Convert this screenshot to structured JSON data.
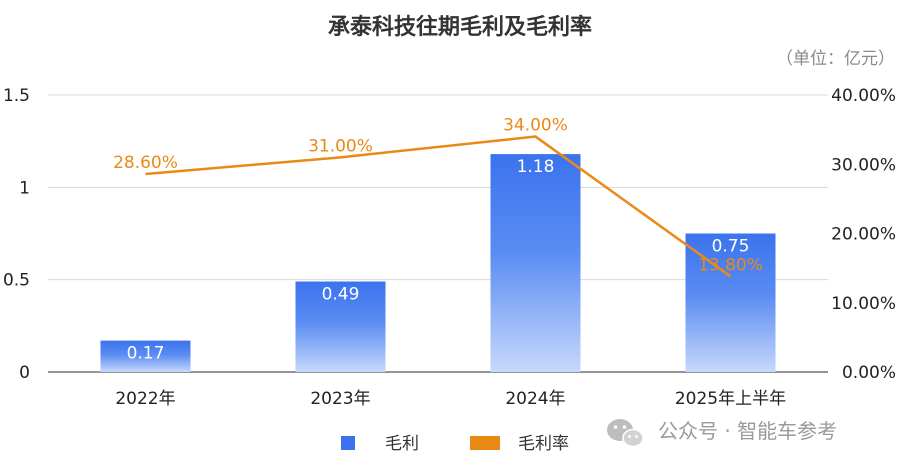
{
  "chart_data": {
    "type": "bar",
    "title": "承泰科技往期毛利及毛利率",
    "unit_note": "（单位：亿元）",
    "categories": [
      "2022年",
      "2023年",
      "2024年",
      "2025年上半年"
    ],
    "series": [
      {
        "name": "毛利",
        "type": "bar",
        "axis": "left",
        "values": [
          0.17,
          0.49,
          1.18,
          0.75
        ],
        "labels": [
          "0.17",
          "0.49",
          "1.18",
          "0.75"
        ],
        "color": "#3b73ee"
      },
      {
        "name": "毛利率",
        "type": "line",
        "axis": "right",
        "values": [
          28.6,
          31.0,
          34.0,
          13.8
        ],
        "labels": [
          "28.60%",
          "31.00%",
          "34.00%",
          "13.80%"
        ],
        "color": "#e98a16"
      }
    ],
    "y_left": {
      "min": 0,
      "max": 1.5,
      "ticks": [
        0,
        0.5,
        1,
        1.5
      ],
      "tick_labels": [
        "0",
        "0.5",
        "1",
        "1.5"
      ]
    },
    "y_right": {
      "min": 0,
      "max": 40,
      "ticks": [
        0,
        10,
        20,
        30,
        40
      ],
      "tick_labels": [
        "0.00%",
        "10.00%",
        "20.00%",
        "30.00%",
        "40.00%"
      ]
    },
    "grid": true,
    "legend_position": "bottom"
  },
  "watermark": {
    "text": "公众号 · 智能车参考",
    "icon": "wechat-icon"
  }
}
